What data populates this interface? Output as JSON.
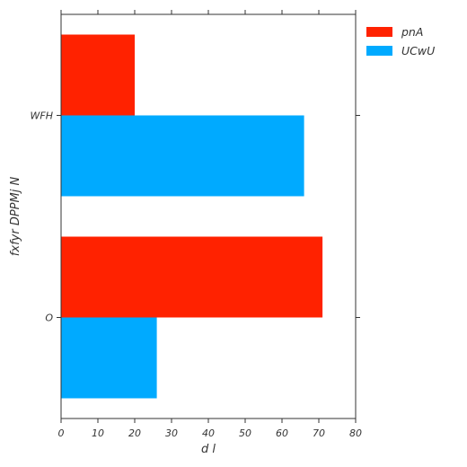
{
  "chart_data": {
    "type": "bar",
    "orientation": "horizontal",
    "categories": [
      "WFH",
      "O"
    ],
    "series": [
      {
        "name": "pnA",
        "color": "#ff2200",
        "values": [
          20,
          71
        ]
      },
      {
        "name": "UCwU",
        "color": "#00aaff",
        "values": [
          66,
          26
        ]
      }
    ],
    "xlabel": "d l",
    "ylabel": "fxfyr DPPMj N",
    "xlim": [
      0,
      80
    ],
    "xticks": [
      "0",
      "10",
      "20",
      "30",
      "40",
      "50",
      "60",
      "70",
      "80"
    ],
    "grid": false,
    "legend_position": "right-outside-top"
  }
}
